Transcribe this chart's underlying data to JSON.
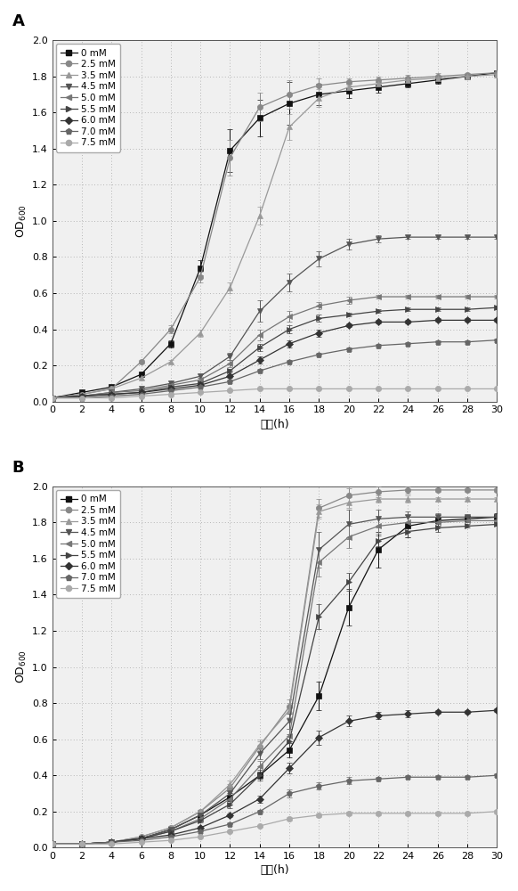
{
  "x": [
    0,
    2,
    4,
    6,
    8,
    10,
    12,
    14,
    16,
    18,
    20,
    22,
    24,
    26,
    28,
    30
  ],
  "panel_A": {
    "series": {
      "0 mM": [
        0.02,
        0.05,
        0.08,
        0.15,
        0.32,
        0.74,
        1.39,
        1.57,
        1.65,
        1.7,
        1.72,
        1.74,
        1.76,
        1.78,
        1.8,
        1.82
      ],
      "2.5 mM": [
        0.02,
        0.04,
        0.07,
        0.22,
        0.4,
        0.69,
        1.35,
        1.63,
        1.7,
        1.75,
        1.77,
        1.78,
        1.79,
        1.8,
        1.81,
        1.82
      ],
      "3.5 mM": [
        0.02,
        0.04,
        0.07,
        0.13,
        0.22,
        0.38,
        0.63,
        1.03,
        1.52,
        1.68,
        1.74,
        1.76,
        1.78,
        1.79,
        1.8,
        1.81
      ],
      "4.5 mM": [
        0.02,
        0.03,
        0.05,
        0.07,
        0.1,
        0.14,
        0.25,
        0.5,
        0.66,
        0.79,
        0.87,
        0.9,
        0.91,
        0.91,
        0.91,
        0.91
      ],
      "5.0 mM": [
        0.02,
        0.03,
        0.05,
        0.06,
        0.09,
        0.12,
        0.21,
        0.37,
        0.47,
        0.53,
        0.56,
        0.58,
        0.58,
        0.58,
        0.58,
        0.58
      ],
      "5.5 mM": [
        0.02,
        0.03,
        0.04,
        0.05,
        0.08,
        0.1,
        0.17,
        0.3,
        0.4,
        0.46,
        0.48,
        0.5,
        0.51,
        0.51,
        0.51,
        0.52
      ],
      "6.0 mM": [
        0.02,
        0.03,
        0.04,
        0.05,
        0.07,
        0.09,
        0.14,
        0.23,
        0.32,
        0.38,
        0.42,
        0.44,
        0.44,
        0.45,
        0.45,
        0.45
      ],
      "7.0 mM": [
        0.02,
        0.02,
        0.03,
        0.04,
        0.06,
        0.08,
        0.11,
        0.17,
        0.22,
        0.26,
        0.29,
        0.31,
        0.32,
        0.33,
        0.33,
        0.34
      ],
      "7.5 mM": [
        0.02,
        0.02,
        0.02,
        0.03,
        0.04,
        0.05,
        0.06,
        0.07,
        0.07,
        0.07,
        0.07,
        0.07,
        0.07,
        0.07,
        0.07,
        0.07
      ]
    },
    "errors": {
      "0 mM": [
        0.005,
        0.005,
        0.005,
        0.01,
        0.02,
        0.04,
        0.12,
        0.1,
        0.12,
        0.06,
        0.04,
        0.03,
        0.02,
        0.02,
        0.01,
        0.01
      ],
      "2.5 mM": [
        0.005,
        0.005,
        0.005,
        0.01,
        0.02,
        0.03,
        0.1,
        0.08,
        0.08,
        0.04,
        0.02,
        0.02,
        0.02,
        0.02,
        0.01,
        0.01
      ],
      "3.5 mM": [
        0.005,
        0.005,
        0.005,
        0.01,
        0.01,
        0.02,
        0.03,
        0.05,
        0.07,
        0.05,
        0.03,
        0.02,
        0.02,
        0.01,
        0.01,
        0.01
      ],
      "4.5 mM": [
        0.005,
        0.005,
        0.005,
        0.005,
        0.01,
        0.01,
        0.02,
        0.06,
        0.05,
        0.04,
        0.03,
        0.02,
        0.01,
        0.01,
        0.01,
        0.01
      ],
      "5.0 mM": [
        0.005,
        0.005,
        0.005,
        0.005,
        0.01,
        0.01,
        0.02,
        0.03,
        0.03,
        0.02,
        0.02,
        0.01,
        0.01,
        0.01,
        0.01,
        0.01
      ],
      "5.5 mM": [
        0.005,
        0.005,
        0.005,
        0.005,
        0.01,
        0.01,
        0.01,
        0.02,
        0.02,
        0.02,
        0.01,
        0.01,
        0.01,
        0.01,
        0.01,
        0.01
      ],
      "6.0 mM": [
        0.005,
        0.005,
        0.005,
        0.005,
        0.01,
        0.01,
        0.01,
        0.02,
        0.02,
        0.02,
        0.01,
        0.01,
        0.01,
        0.01,
        0.01,
        0.01
      ],
      "7.0 mM": [
        0.005,
        0.005,
        0.005,
        0.005,
        0.005,
        0.01,
        0.01,
        0.01,
        0.01,
        0.01,
        0.01,
        0.01,
        0.01,
        0.01,
        0.01,
        0.01
      ],
      "7.5 mM": [
        0.005,
        0.005,
        0.005,
        0.005,
        0.005,
        0.005,
        0.005,
        0.005,
        0.005,
        0.005,
        0.005,
        0.005,
        0.005,
        0.005,
        0.005,
        0.005
      ]
    }
  },
  "panel_B": {
    "series": {
      "0 mM": [
        0.02,
        0.02,
        0.03,
        0.05,
        0.1,
        0.18,
        0.28,
        0.4,
        0.54,
        0.84,
        1.33,
        1.65,
        1.78,
        1.81,
        1.82,
        1.83
      ],
      "2.5 mM": [
        0.02,
        0.02,
        0.03,
        0.06,
        0.11,
        0.2,
        0.33,
        0.56,
        0.78,
        1.88,
        1.95,
        1.97,
        1.98,
        1.98,
        1.98,
        1.98
      ],
      "3.5 mM": [
        0.02,
        0.02,
        0.03,
        0.06,
        0.11,
        0.2,
        0.35,
        0.57,
        0.76,
        1.86,
        1.91,
        1.93,
        1.93,
        1.93,
        1.93,
        1.93
      ],
      "4.5 mM": [
        0.02,
        0.02,
        0.03,
        0.05,
        0.1,
        0.18,
        0.3,
        0.52,
        0.7,
        1.65,
        1.79,
        1.82,
        1.83,
        1.83,
        1.83,
        1.83
      ],
      "5.0 mM": [
        0.02,
        0.02,
        0.03,
        0.05,
        0.09,
        0.16,
        0.27,
        0.45,
        0.62,
        1.58,
        1.72,
        1.78,
        1.8,
        1.8,
        1.81,
        1.81
      ],
      "5.5 mM": [
        0.02,
        0.02,
        0.03,
        0.05,
        0.09,
        0.15,
        0.24,
        0.4,
        0.59,
        1.28,
        1.47,
        1.7,
        1.75,
        1.77,
        1.78,
        1.79
      ],
      "6.0 mM": [
        0.02,
        0.02,
        0.03,
        0.05,
        0.07,
        0.11,
        0.18,
        0.27,
        0.44,
        0.61,
        0.7,
        0.73,
        0.74,
        0.75,
        0.75,
        0.76
      ],
      "7.0 mM": [
        0.02,
        0.02,
        0.03,
        0.04,
        0.06,
        0.09,
        0.13,
        0.2,
        0.3,
        0.34,
        0.37,
        0.38,
        0.39,
        0.39,
        0.39,
        0.4
      ],
      "7.5 mM": [
        0.02,
        0.02,
        0.02,
        0.03,
        0.04,
        0.06,
        0.09,
        0.12,
        0.16,
        0.18,
        0.19,
        0.19,
        0.19,
        0.19,
        0.19,
        0.2
      ]
    },
    "errors": {
      "0 mM": [
        0.005,
        0.005,
        0.005,
        0.005,
        0.01,
        0.01,
        0.02,
        0.02,
        0.04,
        0.08,
        0.1,
        0.1,
        0.06,
        0.03,
        0.02,
        0.02
      ],
      "2.5 mM": [
        0.005,
        0.005,
        0.005,
        0.005,
        0.01,
        0.01,
        0.02,
        0.03,
        0.04,
        0.05,
        0.04,
        0.03,
        0.02,
        0.01,
        0.01,
        0.01
      ],
      "3.5 mM": [
        0.005,
        0.005,
        0.005,
        0.005,
        0.01,
        0.01,
        0.02,
        0.03,
        0.04,
        0.04,
        0.03,
        0.02,
        0.02,
        0.01,
        0.01,
        0.01
      ],
      "4.5 mM": [
        0.005,
        0.005,
        0.005,
        0.005,
        0.01,
        0.01,
        0.02,
        0.03,
        0.04,
        0.1,
        0.08,
        0.05,
        0.03,
        0.02,
        0.01,
        0.01
      ],
      "5.0 mM": [
        0.005,
        0.005,
        0.005,
        0.005,
        0.01,
        0.01,
        0.02,
        0.03,
        0.04,
        0.08,
        0.06,
        0.04,
        0.03,
        0.02,
        0.01,
        0.01
      ],
      "5.5 mM": [
        0.005,
        0.005,
        0.005,
        0.005,
        0.01,
        0.01,
        0.02,
        0.03,
        0.04,
        0.07,
        0.05,
        0.03,
        0.03,
        0.02,
        0.01,
        0.01
      ],
      "6.0 mM": [
        0.005,
        0.005,
        0.005,
        0.005,
        0.005,
        0.01,
        0.01,
        0.02,
        0.03,
        0.04,
        0.03,
        0.02,
        0.02,
        0.01,
        0.01,
        0.01
      ],
      "7.0 mM": [
        0.005,
        0.005,
        0.005,
        0.005,
        0.005,
        0.01,
        0.01,
        0.01,
        0.02,
        0.02,
        0.02,
        0.01,
        0.01,
        0.01,
        0.01,
        0.01
      ],
      "7.5 mM": [
        0.005,
        0.005,
        0.005,
        0.005,
        0.005,
        0.005,
        0.005,
        0.005,
        0.01,
        0.01,
        0.01,
        0.01,
        0.01,
        0.01,
        0.01,
        0.01
      ]
    }
  },
  "series_order": [
    "0 mM",
    "2.5 mM",
    "3.5 mM",
    "4.5 mM",
    "5.0 mM",
    "5.5 mM",
    "6.0 mM",
    "7.0 mM",
    "7.5 mM"
  ],
  "markers": [
    "s",
    "o",
    "^",
    "v",
    "<",
    ">",
    "D",
    "p",
    "o"
  ],
  "colors": [
    "#111111",
    "#888888",
    "#999999",
    "#555555",
    "#777777",
    "#444444",
    "#333333",
    "#666666",
    "#aaaaaa"
  ],
  "linestyles": [
    "-",
    "-",
    "-",
    "-",
    "-",
    "-",
    "-",
    "-",
    "-"
  ],
  "bg_color": "#f0f0f0",
  "fig_color": "#ffffff",
  "ylabel": "OD$_{600}$",
  "xlabel": "时间(h)",
  "ylim": [
    0.0,
    2.0
  ],
  "yticks": [
    0.0,
    0.2,
    0.4,
    0.6,
    0.8,
    1.0,
    1.2,
    1.4,
    1.6,
    1.8,
    2.0
  ],
  "xticks": [
    0,
    2,
    4,
    6,
    8,
    10,
    12,
    14,
    16,
    18,
    20,
    22,
    24,
    26,
    28,
    30
  ],
  "panel_labels": [
    "A",
    "B"
  ],
  "markersize": 4.5,
  "linewidth": 0.9,
  "capsize": 2,
  "legend_fontsize": 7.5,
  "tick_fontsize": 8,
  "label_fontsize": 9
}
